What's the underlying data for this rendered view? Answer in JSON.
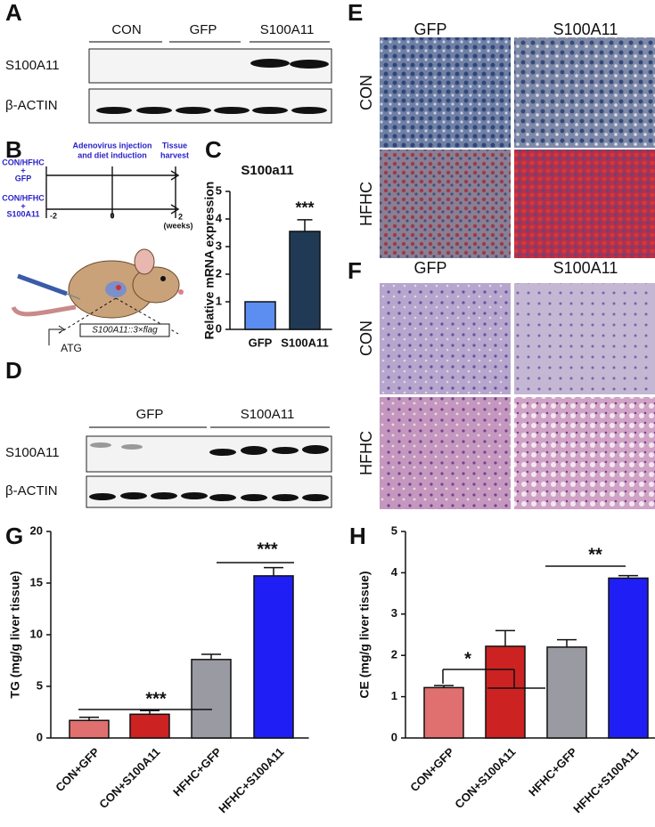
{
  "panels": {
    "A": {
      "letter": "A",
      "groups": [
        "CON",
        "GFP",
        "S100A11"
      ],
      "rows": [
        "S100A11",
        "β-ACTIN"
      ]
    },
    "B": {
      "letter": "B",
      "group1": [
        "CON/HFHC",
        "+",
        "GFP"
      ],
      "group2": [
        "CON/HFHC",
        "+",
        "S100A11"
      ],
      "event1": [
        "Adenovirus injection",
        "and diet induction"
      ],
      "event2": [
        "Tissue",
        "harvest"
      ],
      "times": [
        "-2",
        "0",
        "2"
      ],
      "unit": "(weeks)",
      "construct": "S100A11::3×flag",
      "start": "ATG"
    },
    "C": {
      "letter": "C"
    },
    "D": {
      "letter": "D",
      "groups": [
        "GFP",
        "S100A11"
      ],
      "rows": [
        "S100A11",
        "β-ACTIN"
      ]
    },
    "E": {
      "letter": "E",
      "columns": [
        "GFP",
        "S100A11"
      ],
      "rows": [
        "CON",
        "HFHC"
      ]
    },
    "F": {
      "letter": "F",
      "columns": [
        "GFP",
        "S100A11"
      ],
      "rows": [
        "CON",
        "HFHC"
      ]
    },
    "G": {
      "letter": "G"
    },
    "H": {
      "letter": "H"
    }
  },
  "chart_data": [
    {
      "type": "bar",
      "title": "S100a11",
      "y_label": "Relative mRNA expression",
      "categories": [
        "GFP",
        "S100A11"
      ],
      "values": [
        1.0,
        3.55
      ],
      "errors": [
        0,
        0.42
      ],
      "colors": [
        "#5b8ef0",
        "#203a56"
      ],
      "ylim": [
        0,
        5
      ],
      "yticks": [
        0,
        1,
        2,
        3,
        4,
        5
      ],
      "annotations": [
        "***"
      ]
    },
    {
      "type": "bar",
      "y_label": "TG (mg/g liver tissue)",
      "categories": [
        "CON+GFP",
        "CON+S100A11",
        "HFHC+GFP",
        "HFHC+S100A11"
      ],
      "values": [
        1.7,
        2.3,
        7.6,
        15.7
      ],
      "errors": [
        0.3,
        0.35,
        0.5,
        0.8
      ],
      "colors": [
        "#e07070",
        "#cc2222",
        "#9a9aa2",
        "#1f1ff5"
      ],
      "ylim": [
        0,
        20
      ],
      "yticks": [
        0,
        5,
        10,
        15,
        20
      ],
      "annotations": [
        "***",
        "***"
      ]
    },
    {
      "type": "bar",
      "y_label": "CE (mg/g liver tissue)",
      "categories": [
        "CON+GFP",
        "CON+S100A11",
        "HFHC+GFP",
        "HFHC+S100A11"
      ],
      "values": [
        1.22,
        2.22,
        2.2,
        3.87
      ],
      "errors": [
        0.05,
        0.38,
        0.18,
        0.06
      ],
      "colors": [
        "#e07070",
        "#cc2222",
        "#9a9aa2",
        "#1f1ff5"
      ],
      "ylim": [
        0,
        5
      ],
      "yticks": [
        0,
        1,
        2,
        3,
        4,
        5
      ],
      "annotations": [
        "*",
        "**"
      ]
    }
  ]
}
